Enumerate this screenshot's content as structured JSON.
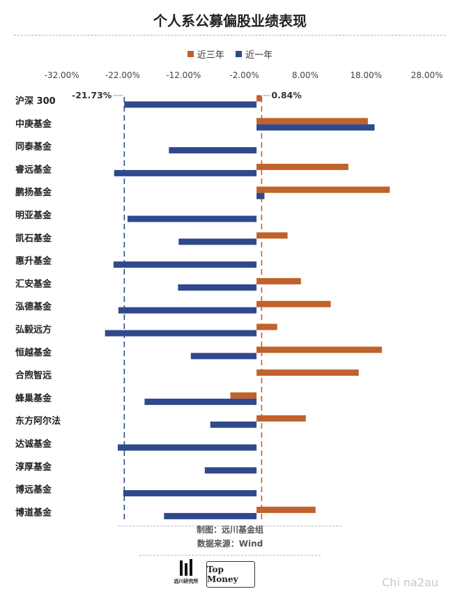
{
  "title": "个人系公募偏股业绩表现",
  "legend": [
    {
      "name": "近三年",
      "color": "#c0622b"
    },
    {
      "name": "近一年",
      "color": "#2e4a8c"
    }
  ],
  "credit": "制图：远川基金组",
  "source": "数据来源：Wind",
  "logos": {
    "left_text": "远川研究所",
    "right_text": "Top Money"
  },
  "watermark": "Chi na2au",
  "chart_data": {
    "type": "bar",
    "orientation": "horizontal",
    "title": "个人系公募偏股业绩表现",
    "xlim": [
      -0.37,
      0.3
    ],
    "ticks": [
      -0.32,
      -0.22,
      -0.12,
      -0.02,
      0.08,
      0.18,
      0.28
    ],
    "tick_labels": [
      "-32.00%",
      "-22.00%",
      "-12.00%",
      "-2.00%",
      "8.00%",
      "18.00%",
      "28.00%"
    ],
    "axis_position": "top",
    "legend_position": "top",
    "categories": [
      "沪深 300",
      "中庚基金",
      "同泰基金",
      "睿远基金",
      "鹏扬基金",
      "明亚基金",
      "凯石基金",
      "惠升基金",
      "汇安基金",
      "泓德基金",
      "弘毅远方",
      "恒越基金",
      "合煦智远",
      "蜂巢基金",
      "东方阿尔法",
      "达诚基金",
      "淳厚基金",
      "博远基金",
      "博道基金"
    ],
    "series": [
      {
        "name": "近三年",
        "color": "#c0622b",
        "values": [
          0.0084,
          0.183,
          null,
          0.151,
          0.219,
          null,
          0.051,
          null,
          0.073,
          0.122,
          0.034,
          0.206,
          0.168,
          -0.043,
          0.081,
          null,
          null,
          null,
          0.097
        ]
      },
      {
        "name": "近一年",
        "color": "#2e4a8c",
        "values": [
          -0.2173,
          0.194,
          -0.144,
          -0.234,
          0.013,
          -0.212,
          -0.128,
          -0.235,
          -0.129,
          -0.227,
          -0.249,
          -0.108,
          null,
          -0.184,
          -0.076,
          -0.228,
          -0.085,
          -0.219,
          -0.152
        ]
      }
    ],
    "reference_lines": [
      {
        "value": -0.2173,
        "label": "-21.73%",
        "color": "#2e4a8c"
      },
      {
        "value": 0.0084,
        "label": "0.84%",
        "color": "#c0622b"
      }
    ]
  }
}
